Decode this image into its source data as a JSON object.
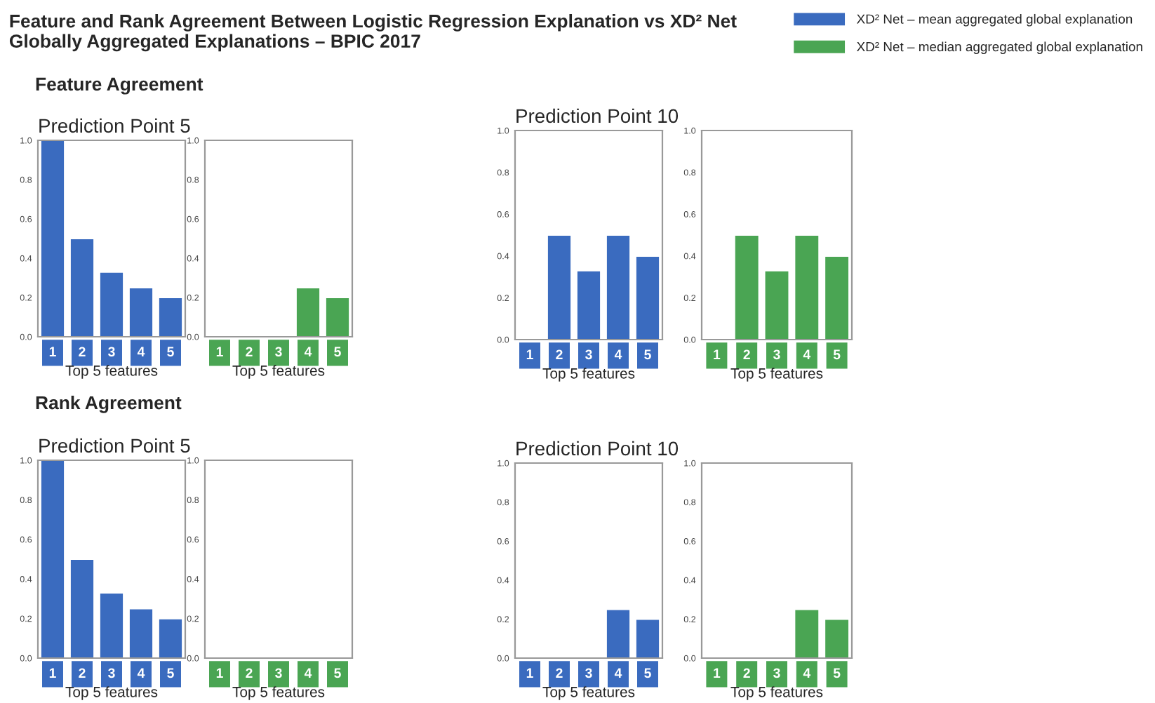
{
  "chart_data": [
    {
      "type": "bar",
      "title": "Prediction Point 5",
      "xlabel": "Top 5 features",
      "annotations": [
        "Feature and Rank Agreement Between Logistic Regression Explanation vs XD² Net Globally Aggregated Explanations – BPIC 2017",
        "Feature Agreement"
      ],
      "categories": [
        "1",
        "2",
        "3",
        "4",
        "5"
      ],
      "series": [
        {
          "name": "XD² Net – mean aggregated global explanation",
          "color": "#3a6bbf",
          "values": [
            1.0,
            0.5,
            0.33,
            0.25,
            0.2
          ]
        }
      ],
      "ylim": [
        0,
        1
      ],
      "yticks": [
        {
          "value": 0,
          "label": "0.0"
        },
        {
          "value": 0.2,
          "label": "0.2"
        },
        {
          "value": 0.4,
          "label": "0.4"
        },
        {
          "value": 0.6,
          "label": "0.6"
        },
        {
          "value": 0.8,
          "label": "0.8"
        },
        {
          "value": 1,
          "label": "1.0"
        }
      ],
      "legend": "top right"
    },
    {
      "type": "bar",
      "xlabel": "Top 5 features",
      "categories": [
        "1",
        "2",
        "3",
        "4",
        "5"
      ],
      "series": [
        {
          "name": "XD² Net – median aggregated global explanation",
          "color": "#4aa553",
          "values": [
            0,
            0,
            0,
            0.25,
            0.2
          ]
        }
      ],
      "ylim": [
        0,
        1
      ],
      "yticks": [
        {
          "value": 0,
          "label": "0.0"
        },
        {
          "value": 0.2,
          "label": "0.2"
        },
        {
          "value": 0.4,
          "label": "0.4"
        },
        {
          "value": 0.6,
          "label": "0.6"
        },
        {
          "value": 0.8,
          "label": "0.8"
        },
        {
          "value": 1,
          "label": "1.0"
        }
      ],
      "legend": "top right"
    },
    {
      "type": "bar",
      "title": "Prediction Point 10",
      "xlabel": "Top 5 features",
      "categories": [
        "1",
        "2",
        "3",
        "4",
        "5"
      ],
      "series": [
        {
          "color": "#3a6bbf",
          "values": [
            0,
            0.5,
            0.33,
            0.5,
            0.4
          ]
        }
      ],
      "ylim": [
        0,
        1
      ],
      "yticks": [
        {
          "value": 0,
          "label": "0.0"
        },
        {
          "value": 0.2,
          "label": "0.2"
        },
        {
          "value": 0.4,
          "label": "0.4"
        },
        {
          "value": 0.6,
          "label": "0.6"
        },
        {
          "value": 0.8,
          "label": "0.8"
        },
        {
          "value": 1,
          "label": "1.0"
        }
      ]
    },
    {
      "type": "bar",
      "xlabel": "Top 5 features",
      "categories": [
        "1",
        "2",
        "3",
        "4",
        "5"
      ],
      "series": [
        {
          "color": "#4aa553",
          "values": [
            0,
            0.5,
            0.33,
            0.5,
            0.4
          ]
        }
      ],
      "ylim": [
        0,
        1
      ],
      "yticks": [
        {
          "value": 0,
          "label": "0.0"
        },
        {
          "value": 0.2,
          "label": "0.2"
        },
        {
          "value": 0.4,
          "label": "0.4"
        },
        {
          "value": 0.6,
          "label": "0.6"
        },
        {
          "value": 0.8,
          "label": "0.8"
        },
        {
          "value": 1,
          "label": "1.0"
        }
      ]
    },
    {
      "type": "bar",
      "title": "Prediction Point 5",
      "xlabel": "Top 5 features",
      "annotations": [
        "Rank Agreement"
      ],
      "categories": [
        "1",
        "2",
        "3",
        "4",
        "5"
      ],
      "series": [
        {
          "color": "#3a6bbf",
          "values": [
            1.0,
            0.5,
            0.33,
            0.25,
            0.2
          ]
        }
      ],
      "ylim": [
        0,
        1
      ],
      "yticks": [
        {
          "value": 0,
          "label": "0.0"
        },
        {
          "value": 0.2,
          "label": "0.2"
        },
        {
          "value": 0.4,
          "label": "0.4"
        },
        {
          "value": 0.6,
          "label": "0.6"
        },
        {
          "value": 0.8,
          "label": "0.8"
        },
        {
          "value": 1,
          "label": "1.0"
        }
      ]
    },
    {
      "type": "bar",
      "xlabel": "Top 5 features",
      "categories": [
        "1",
        "2",
        "3",
        "4",
        "5"
      ],
      "series": [
        {
          "color": "#4aa553",
          "values": [
            0,
            0,
            0,
            0,
            0
          ]
        }
      ],
      "ylim": [
        0,
        1
      ],
      "yticks": [
        {
          "value": 0,
          "label": "0.0"
        },
        {
          "value": 0.2,
          "label": "0.2"
        },
        {
          "value": 0.4,
          "label": "0.4"
        },
        {
          "value": 0.6,
          "label": "0.6"
        },
        {
          "value": 0.8,
          "label": "0.8"
        },
        {
          "value": 1,
          "label": "1.0"
        }
      ]
    },
    {
      "type": "bar",
      "title": "Prediction Point 10",
      "xlabel": "Top 5 features",
      "categories": [
        "1",
        "2",
        "3",
        "4",
        "5"
      ],
      "series": [
        {
          "color": "#3a6bbf",
          "values": [
            0,
            0,
            0,
            0.25,
            0.2
          ]
        }
      ],
      "ylim": [
        0,
        1
      ],
      "yticks": [
        {
          "value": 0,
          "label": "0.0"
        },
        {
          "value": 0.2,
          "label": "0.2"
        },
        {
          "value": 0.4,
          "label": "0.4"
        },
        {
          "value": 0.6,
          "label": "0.6"
        },
        {
          "value": 0.8,
          "label": "0.8"
        },
        {
          "value": 1,
          "label": "1.0"
        }
      ]
    },
    {
      "type": "bar",
      "xlabel": "Top 5 features",
      "categories": [
        "1",
        "2",
        "3",
        "4",
        "5"
      ],
      "series": [
        {
          "color": "#4aa553",
          "values": [
            0,
            0,
            0,
            0.25,
            0.2
          ]
        }
      ],
      "ylim": [
        0,
        1
      ],
      "yticks": [
        {
          "value": 0,
          "label": "0.0"
        },
        {
          "value": 0.2,
          "label": "0.2"
        },
        {
          "value": 0.4,
          "label": "0.4"
        },
        {
          "value": 0.6,
          "label": "0.6"
        },
        {
          "value": 0.8,
          "label": "0.8"
        },
        {
          "value": 1,
          "label": "1.0"
        }
      ]
    }
  ]
}
